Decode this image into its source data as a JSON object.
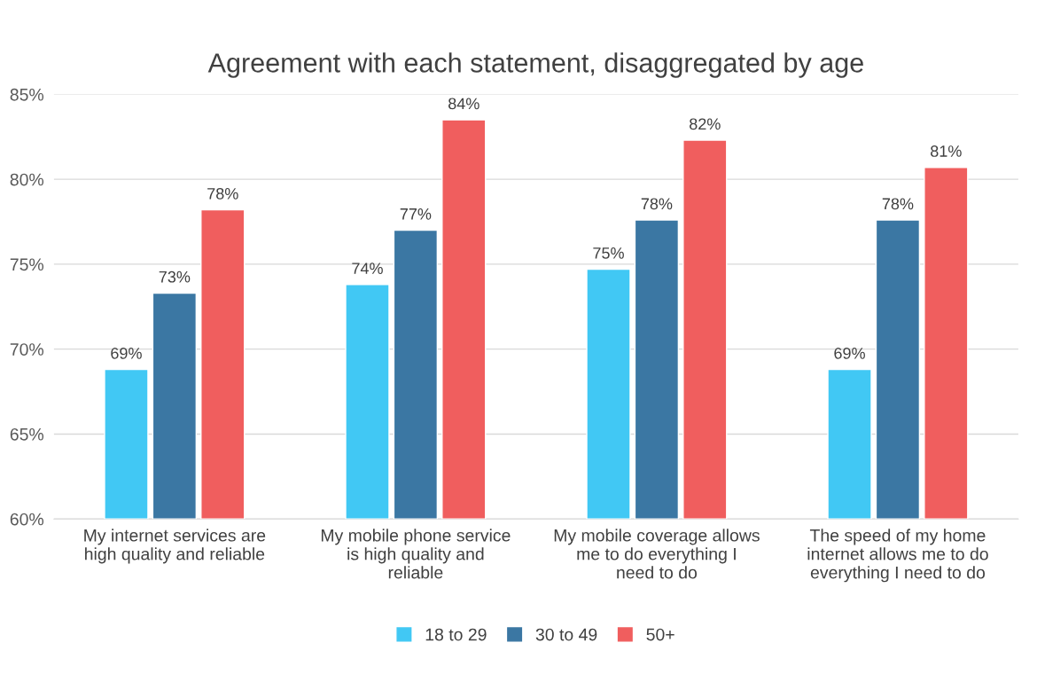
{
  "chart_data": {
    "type": "bar",
    "title": "Agreement with each statement, disaggregated by age",
    "categories": [
      "My internet services are high quality and reliable",
      "My mobile phone service is high quality and reliable",
      "My mobile coverage allows me to do everything I need to do",
      "The speed of my home internet allows me to do everything I need to do"
    ],
    "series": [
      {
        "name": "18 to 29",
        "color": "#41c8f4",
        "values": [
          68.8,
          73.8,
          74.7,
          68.8
        ],
        "value_labels": [
          "69%",
          "74%",
          "75%",
          "69%"
        ]
      },
      {
        "name": "30 to 49",
        "color": "#3b77a3",
        "values": [
          73.3,
          77.0,
          77.6,
          77.6
        ],
        "value_labels": [
          "73%",
          "77%",
          "78%",
          "78%"
        ]
      },
      {
        "name": "50+",
        "color": "#f05e5e",
        "values": [
          78.2,
          83.5,
          82.3,
          80.7
        ],
        "value_labels": [
          "78%",
          "84%",
          "82%",
          "81%"
        ]
      }
    ],
    "ylim": [
      60,
      85
    ],
    "yticks": [
      {
        "value": 60,
        "label": "60%"
      },
      {
        "value": 65,
        "label": "65%"
      },
      {
        "value": 70,
        "label": "70%"
      },
      {
        "value": 75,
        "label": "75%"
      },
      {
        "value": 80,
        "label": "80%"
      },
      {
        "value": 85,
        "label": "85%"
      }
    ],
    "grid": "y",
    "legend": "bottom"
  }
}
